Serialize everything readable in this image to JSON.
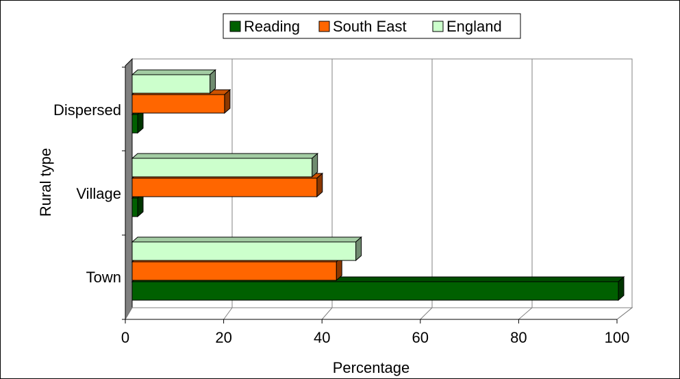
{
  "chart_data": {
    "type": "bar",
    "orientation": "horizontal",
    "three_d": true,
    "categories": [
      "Town",
      "Village",
      "Dispersed"
    ],
    "series": [
      {
        "name": "Reading",
        "color": "#006000",
        "values": [
          100,
          0,
          0
        ]
      },
      {
        "name": "South East",
        "color": "#FF6600",
        "values": [
          42,
          38,
          19
        ]
      },
      {
        "name": "England",
        "color": "#CCFFCC",
        "values": [
          46,
          37,
          16
        ]
      }
    ],
    "title": "",
    "xlabel": "Percentage",
    "ylabel": "Rural type",
    "xlim": [
      0,
      100
    ],
    "xticks": [
      0,
      20,
      40,
      60,
      80,
      100
    ],
    "grid": "vertical",
    "legend_position": "top"
  }
}
